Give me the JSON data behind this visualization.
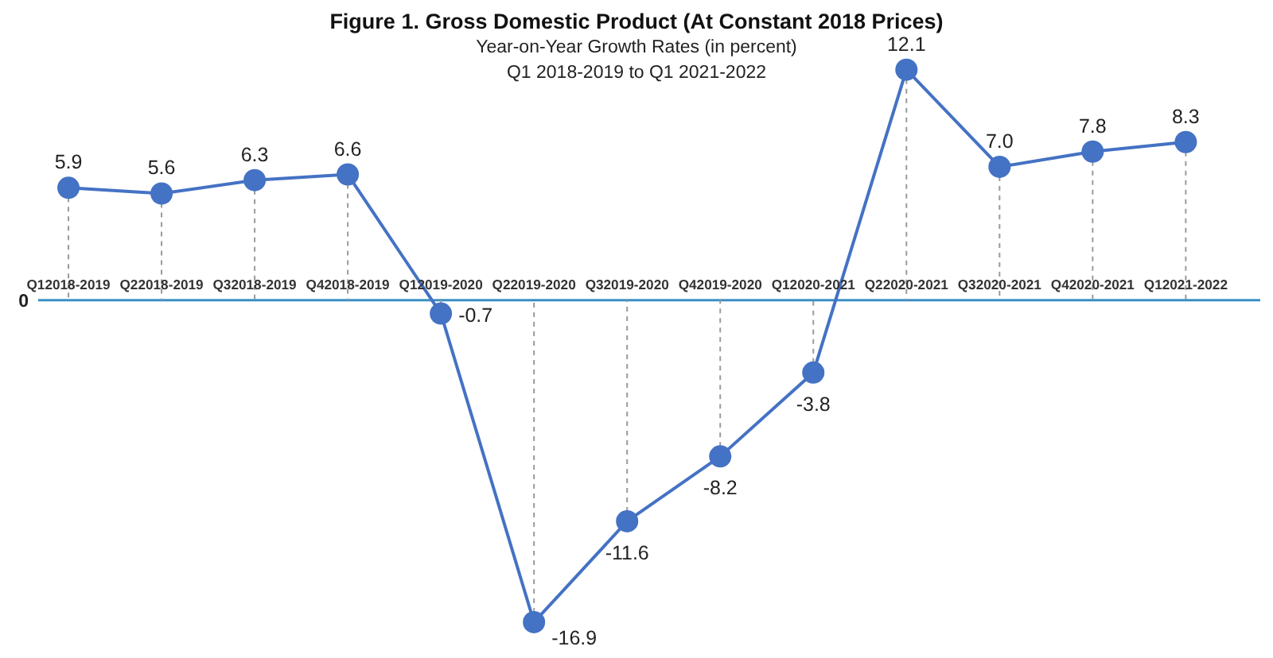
{
  "chart_data": {
    "type": "line",
    "title": "Figure 1. Gross Domestic Product (At Constant 2018 Prices)",
    "subtitle": "Year-on-Year Growth Rates (in percent)\nQ1 2018-2019 to Q1 2021-2022",
    "categories": [
      "Q12018-2019",
      "Q22018-2019",
      "Q32018-2019",
      "Q42018-2019",
      "Q12019-2020",
      "Q22019-2020",
      "Q32019-2020",
      "Q42019-2020",
      "Q12020-2021",
      "Q22020-2021",
      "Q32020-2021",
      "Q42020-2021",
      "Q12021-2022"
    ],
    "values": [
      5.9,
      5.6,
      6.3,
      6.6,
      -0.7,
      -16.9,
      -11.6,
      -8.2,
      -3.8,
      12.1,
      7.0,
      7.8,
      8.3
    ],
    "value_labels": [
      "5.9",
      "5.6",
      "6.3",
      "6.6",
      "-0.7",
      "-16.9",
      "-11.6",
      "-8.2",
      "-3.8",
      "12.1",
      "7.0",
      "7.8",
      "8.3"
    ],
    "color": "#4472c4",
    "marker": "circle",
    "annotations": [
      "0"
    ]
  }
}
